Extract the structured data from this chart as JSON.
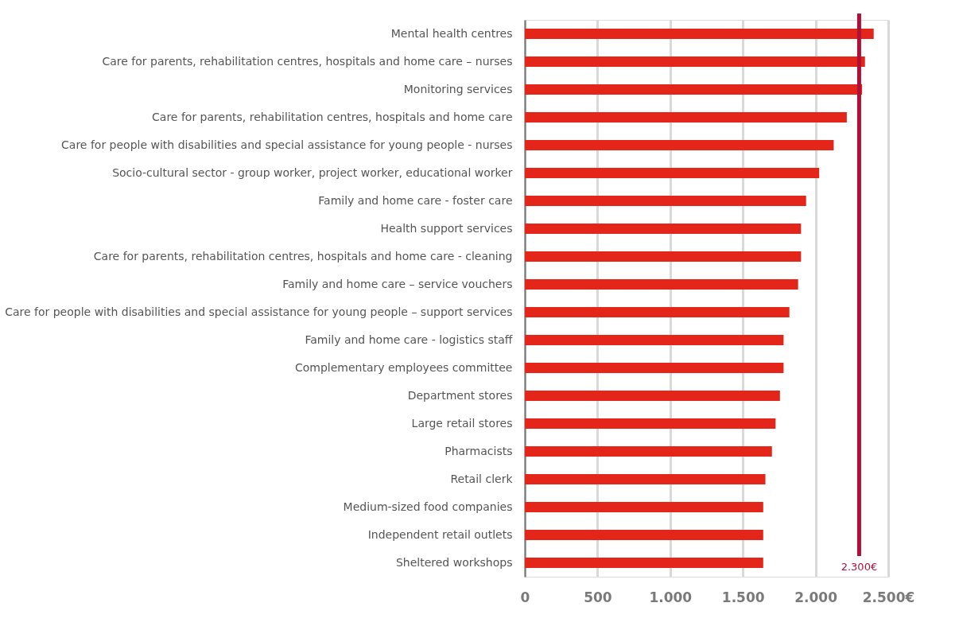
{
  "chart_data": {
    "type": "bar",
    "orientation": "horizontal",
    "categories": [
      "Mental health centres",
      "Care for parents, rehabilitation centres, hospitals and home care – nurses",
      "Monitoring services",
      "Care for parents, rehabilitation centres, hospitals and home care",
      "Care for people with disabilities and special assistance for young people - nurses",
      "Socio-cultural sector - group worker, project worker, educational worker",
      "Family and home care - foster care",
      "Health support services",
      "Care for parents, rehabilitation centres, hospitals and home care - cleaning",
      "Family and home care – service vouchers",
      "Care for people with disabilities and special assistance for young people – support services",
      "Family and home care - logistics staff",
      "Complementary employees committee",
      "Department stores",
      "Large retail stores",
      "Pharmacists",
      "Retail clerk",
      "Medium-sized food companies",
      "Independent retail outlets",
      "Sheltered workshops"
    ],
    "values": [
      2400,
      2340,
      2320,
      2215,
      2125,
      2025,
      1935,
      1900,
      1900,
      1880,
      1820,
      1780,
      1780,
      1755,
      1725,
      1700,
      1655,
      1640,
      1640,
      1640
    ],
    "color": "#e32619",
    "xlim": [
      0,
      2500
    ],
    "xticks": [
      0,
      500,
      {
        "value": 1000,
        "label": "1.000"
      },
      {
        "value": 1500,
        "label": "1.500"
      },
      {
        "value": 2000,
        "label": "2.000"
      },
      {
        "value": 2500,
        "label": "2.500€"
      }
    ],
    "grid": "x",
    "ref_lines": [
      {
        "axis": "x",
        "value": 2300,
        "label": "2.300€",
        "color": "#b01038"
      }
    ]
  }
}
